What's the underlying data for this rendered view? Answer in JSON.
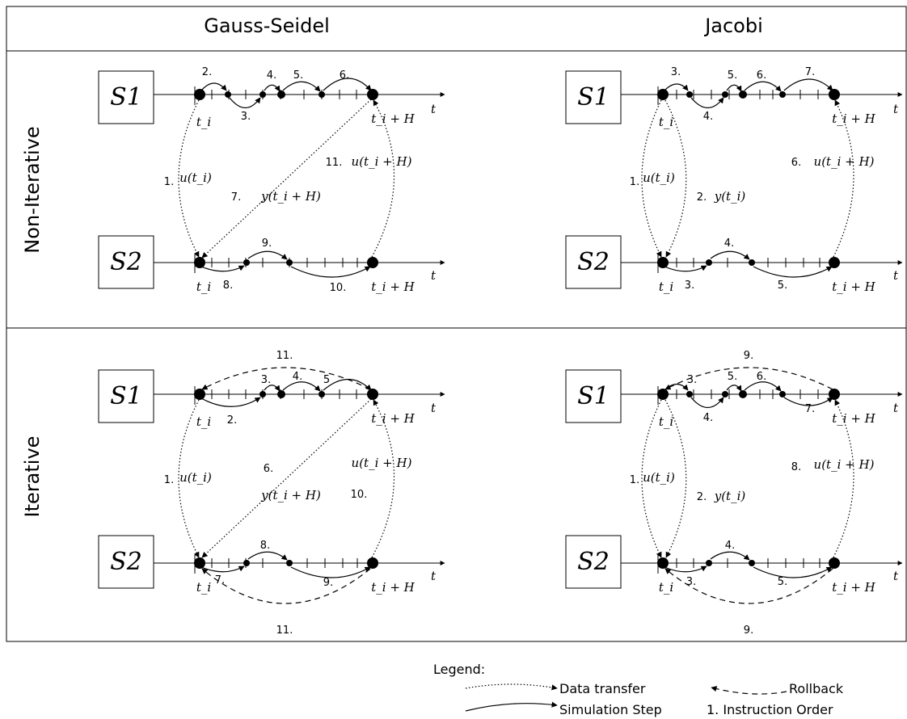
{
  "columns": [
    "Gauss-Seidel",
    "Jacobi"
  ],
  "rows": [
    "Non-Iterative",
    "Iterative"
  ],
  "subsystems": [
    "S1",
    "S2"
  ],
  "time_axis_label": "t",
  "time_start_label": "t_i",
  "time_end_label": "t_i + H",
  "panels": {
    "gs_noniter": {
      "steps": [
        "2.",
        "3.",
        "4.",
        "5.",
        "6.",
        "8.",
        "9.",
        "10."
      ],
      "transfers": [
        {
          "order": "1.",
          "label": "u(t_i)"
        },
        {
          "order": "7.",
          "label": "y(t_i + H)"
        },
        {
          "order": "11.",
          "label": "u(t_i + H)"
        }
      ]
    },
    "j_noniter": {
      "steps": [
        "3.",
        "4.",
        "5.",
        "6.",
        "7.",
        "3.",
        "4.",
        "5."
      ],
      "transfers": [
        {
          "order": "1.",
          "label": "u(t_i)"
        },
        {
          "order": "2.",
          "label": "y(t_i)"
        },
        {
          "order": "6.",
          "label": "u(t_i + H)"
        }
      ]
    },
    "gs_iter": {
      "steps": [
        "2.",
        "3.",
        "4.",
        "5",
        "7.",
        "8.",
        "9."
      ],
      "rollbacks": [
        "11.",
        "11."
      ],
      "transfers": [
        {
          "order": "1.",
          "label": "u(t_i)"
        },
        {
          "order": "6.",
          "label": "y(t_i + H)"
        },
        {
          "order": "10.",
          "label": "u(t_i + H)"
        }
      ]
    },
    "j_iter": {
      "steps": [
        "3.",
        "4.",
        "5.",
        "6.",
        "7.",
        "3.",
        "4.",
        "5."
      ],
      "rollbacks": [
        "9.",
        "9."
      ],
      "transfers": [
        {
          "order": "1.",
          "label": "u(t_i)"
        },
        {
          "order": "2.",
          "label": "y(t_i)"
        },
        {
          "order": "8.",
          "label": "u(t_i + H)"
        }
      ]
    }
  },
  "legend": {
    "title": "Legend:",
    "data_transfer": "Data transfer",
    "rollback": "Rollback",
    "simulation_step": "Simulation Step",
    "instruction_order": "1. Instruction Order"
  }
}
